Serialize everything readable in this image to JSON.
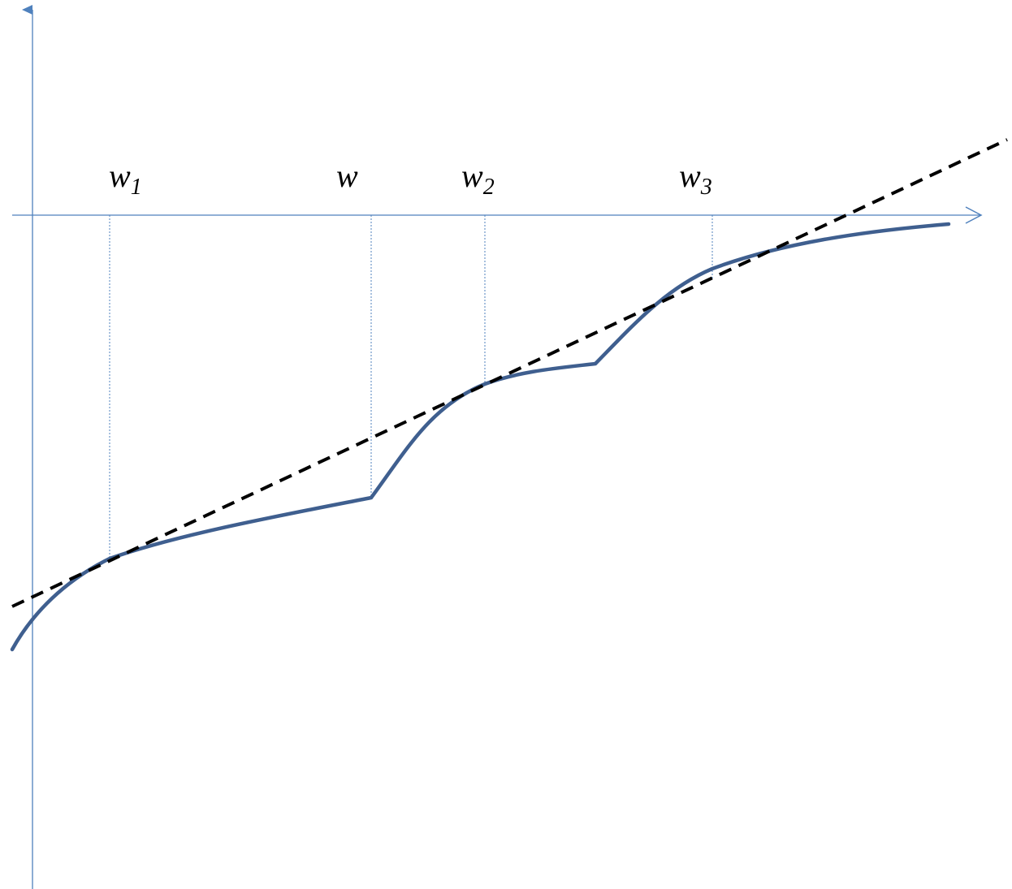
{
  "colors": {
    "axes": "#4F81BD",
    "curve": "#3F5F8F",
    "dashed_line": "#000000",
    "guides": "#4F81BD",
    "background": "#FFFFFF"
  },
  "labels": {
    "w1": {
      "base": "w",
      "sub": "1"
    },
    "w": {
      "base": "w",
      "sub": ""
    },
    "w2": {
      "base": "w",
      "sub": "2"
    },
    "w3": {
      "base": "w",
      "sub": "3"
    }
  }
}
